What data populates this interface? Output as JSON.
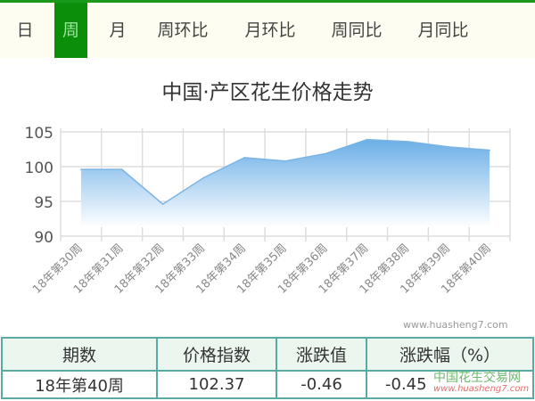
{
  "tabs": [
    {
      "label": "日"
    },
    {
      "label": "周",
      "selected": true
    },
    {
      "label": "月"
    },
    {
      "label": "周环比"
    },
    {
      "label": "月环比"
    },
    {
      "label": "周同比"
    },
    {
      "label": "月同比"
    }
  ],
  "colors": {
    "accent": "#0b8f0b",
    "area": "#6aaee6",
    "table_border": "#5aa9a2"
  },
  "chart_data": {
    "type": "area",
    "title": "中国·产区花生价格走势",
    "categories": [
      "18年第30周",
      "18年第31周",
      "18年第32周",
      "18年第33周",
      "18年第34周",
      "18年第35周",
      "18年第36周",
      "18年第37周",
      "18年第38周",
      "18年第39周",
      "18年第40周"
    ],
    "values": [
      99.6,
      99.6,
      94.6,
      98.4,
      101.3,
      100.8,
      101.9,
      103.9,
      103.6,
      102.83,
      102.37
    ],
    "yticks": [
      90,
      95,
      100,
      105
    ],
    "ylim": [
      90,
      105
    ],
    "grid": true
  },
  "watermark": "www.huasheng7.com",
  "table": {
    "headers": [
      "期数",
      "价格指数",
      "涨跌值",
      "涨跌幅（%）"
    ],
    "row": [
      "18年第40周",
      "102.37",
      "-0.46",
      "-0.45"
    ]
  },
  "logo_watermark": {
    "name": "中国花生交易网",
    "url": "www.huasheng7.com"
  }
}
